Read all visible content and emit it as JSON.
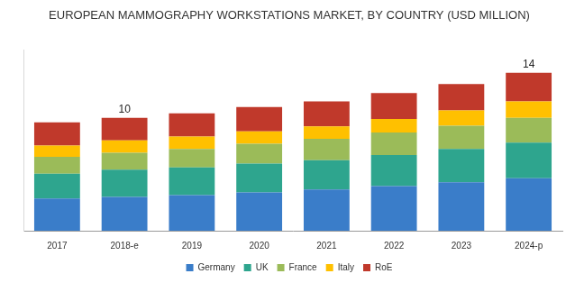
{
  "chart_data": {
    "type": "bar",
    "title": "EUROPEAN MAMMOGRAPHY WORKSTATIONS MARKET, BY COUNTRY (USD MILLION)",
    "categories": [
      "2017",
      "2018-e",
      "2019",
      "2020",
      "2021",
      "2022",
      "2023",
      "2024-p"
    ],
    "series": [
      {
        "name": "Germany",
        "color": "#3a7dc9",
        "values": [
          2.85,
          3.0,
          3.15,
          3.4,
          3.65,
          3.95,
          4.3,
          4.65
        ]
      },
      {
        "name": "UK",
        "color": "#2ea58e",
        "values": [
          2.2,
          2.4,
          2.45,
          2.55,
          2.6,
          2.75,
          2.95,
          3.15
        ]
      },
      {
        "name": "France",
        "color": "#9bbb59",
        "values": [
          1.5,
          1.5,
          1.65,
          1.75,
          1.9,
          2.0,
          2.05,
          2.2
        ]
      },
      {
        "name": "Italy",
        "color": "#ffc000",
        "values": [
          1.0,
          1.1,
          1.1,
          1.1,
          1.1,
          1.2,
          1.35,
          1.45
        ]
      },
      {
        "name": "RoE",
        "color": "#c0392b",
        "values": [
          2.05,
          2.0,
          2.05,
          2.15,
          2.2,
          2.3,
          2.35,
          2.55
        ]
      }
    ],
    "annotations": [
      {
        "x": "2018-e",
        "text": "10"
      },
      {
        "x": "2024-p",
        "text": "14"
      }
    ],
    "ylim": [
      0,
      16
    ],
    "stacked": true,
    "grid": false,
    "legend": "bottom",
    "tick_labels": "x"
  }
}
